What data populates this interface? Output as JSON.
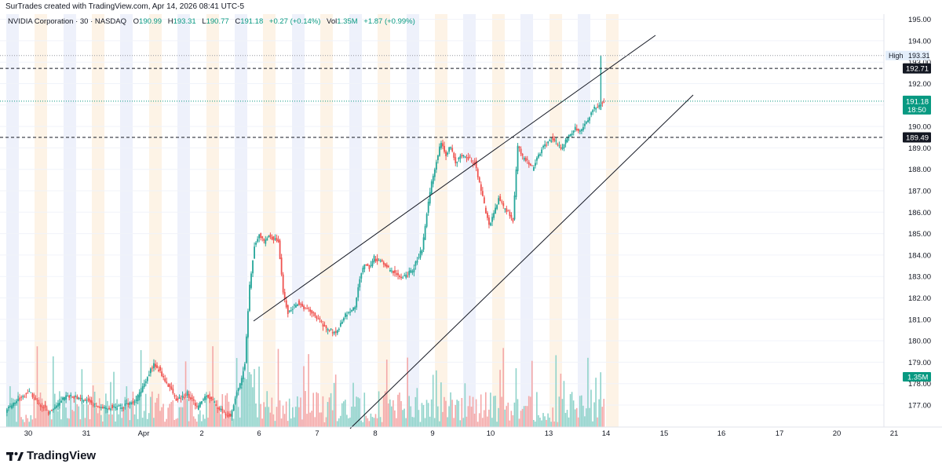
{
  "header": {
    "attribution": "SurTrades created with TradingView.com, Apr 14, 2026 08:41 UTC-5"
  },
  "legend": {
    "symbol": "NVIDIA Corporation · 30 · NASDAQ",
    "open_label": "O",
    "open_value": "190.99",
    "high_label": "H",
    "high_value": "193.31",
    "low_label": "L",
    "low_value": "190.77",
    "close_label": "C",
    "close_value": "191.18",
    "change": "+0.27 (+0.14%)",
    "vol_label": "Vol",
    "vol_value": "1.35M",
    "vol_change": "+1.87 (+0.99%)"
  },
  "footer": {
    "brand": "TradingView"
  },
  "colors": {
    "up": "#26a69a",
    "down": "#ef5350",
    "vol_up": "#8fd3ca",
    "vol_down": "#f4a8a8",
    "last_price_tag": "#089981",
    "dark_tag": "#131722",
    "session_blue": "#eef1fb",
    "session_orange": "#fdf3e6"
  },
  "chart_data": {
    "type": "candlestick",
    "title": "NVIDIA Corporation · 30 · NASDAQ",
    "ylim": [
      176.4,
      195.2
    ],
    "y_ticks": [
      "177.00",
      "178.00",
      "179.00",
      "180.00",
      "181.00",
      "182.00",
      "183.00",
      "184.00",
      "185.00",
      "186.00",
      "187.00",
      "188.00",
      "189.00",
      "190.00",
      "191.00",
      "192.00",
      "193.00",
      "194.00",
      "195.00"
    ],
    "x_ticks": [
      "30",
      "31",
      "Apr",
      "2",
      "6",
      "7",
      "8",
      "9",
      "10",
      "13",
      "14",
      "15",
      "16",
      "17",
      "20",
      "21"
    ],
    "price_tags": {
      "high_label": "High",
      "high": "193.31",
      "dashed_upper": "192.71",
      "last": "191.18",
      "countdown": "18:50",
      "dashed_lower": "189.49",
      "volume": "1.35M"
    },
    "close_path": [
      [
        0,
        177.0
      ],
      [
        4,
        177.6
      ],
      [
        8,
        176.6
      ],
      [
        12,
        177.5
      ],
      [
        16,
        177.2
      ],
      [
        20,
        176.8
      ],
      [
        26,
        177.1
      ],
      [
        30,
        178.9
      ],
      [
        31,
        178.6
      ],
      [
        33,
        177.9
      ],
      [
        35,
        177.2
      ],
      [
        37,
        177.6
      ],
      [
        39,
        176.9
      ],
      [
        41,
        177.5
      ],
      [
        43,
        177.0
      ],
      [
        45,
        176.6
      ],
      [
        46,
        176.5
      ],
      [
        47,
        177.3
      ],
      [
        48,
        178.0
      ],
      [
        49,
        178.9
      ],
      [
        50,
        182.6
      ],
      [
        51,
        184.4
      ],
      [
        52,
        185.0
      ],
      [
        53,
        184.6
      ],
      [
        54,
        184.9
      ],
      [
        56,
        184.6
      ],
      [
        57,
        182.2
      ],
      [
        58,
        181.3
      ],
      [
        60,
        181.7
      ],
      [
        62,
        181.5
      ],
      [
        64,
        181.1
      ],
      [
        66,
        180.6
      ],
      [
        68,
        180.4
      ],
      [
        70,
        181.2
      ],
      [
        72,
        181.6
      ],
      [
        73,
        182.9
      ],
      [
        74,
        183.6
      ],
      [
        75,
        183.4
      ],
      [
        76,
        183.9
      ],
      [
        78,
        183.6
      ],
      [
        80,
        183.2
      ],
      [
        82,
        182.9
      ],
      [
        84,
        183.3
      ],
      [
        86,
        184.3
      ],
      [
        88,
        187.4
      ],
      [
        90,
        189.3
      ],
      [
        91,
        188.6
      ],
      [
        92,
        189.1
      ],
      [
        93,
        188.3
      ],
      [
        94,
        188.6
      ],
      [
        96,
        188.5
      ],
      [
        97,
        188.3
      ],
      [
        100,
        185.4
      ],
      [
        102,
        186.6
      ],
      [
        104,
        186.0
      ],
      [
        105,
        185.6
      ],
      [
        106,
        189.1
      ],
      [
        107,
        188.6
      ],
      [
        108,
        188.4
      ],
      [
        109,
        188.1
      ],
      [
        111,
        188.9
      ],
      [
        113,
        189.4
      ],
      [
        114,
        189.3
      ],
      [
        115,
        189.0
      ],
      [
        117,
        189.7
      ],
      [
        118,
        190.0
      ],
      [
        119,
        189.8
      ],
      [
        121,
        190.4
      ],
      [
        122,
        190.9
      ],
      [
        123,
        190.99
      ],
      [
        124,
        191.18
      ]
    ],
    "trendlines": [
      {
        "from": [
          323,
          409
        ],
        "to": [
          835,
          45
        ]
      },
      {
        "from": [
          446,
          546
        ],
        "to": [
          883,
          121
        ]
      }
    ]
  }
}
